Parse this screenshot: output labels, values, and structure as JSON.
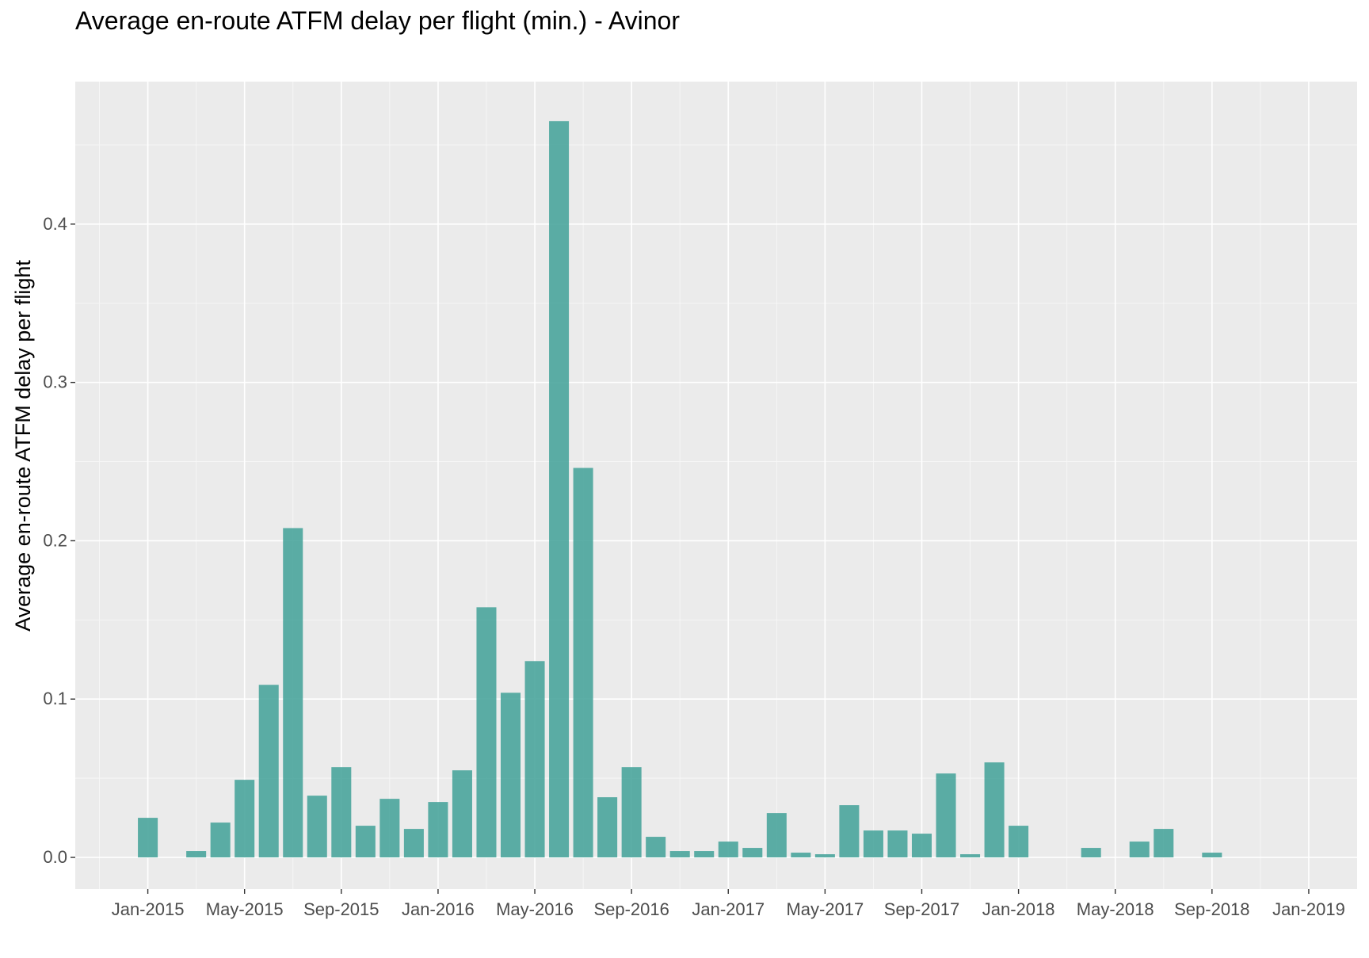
{
  "chart_data": {
    "type": "bar",
    "title": "Average en-route ATFM delay per flight (min.) - Avinor",
    "xlabel": "",
    "ylabel": "Average en-route ATFM delay per flight",
    "x_ticks": [
      "Jan-2015",
      "May-2015",
      "Sep-2015",
      "Jan-2016",
      "May-2016",
      "Sep-2016",
      "Jan-2017",
      "May-2017",
      "Sep-2017",
      "Jan-2018",
      "May-2018",
      "Sep-2018",
      "Jan-2019"
    ],
    "y_ticks": [
      "0.0",
      "0.1",
      "0.2",
      "0.3",
      "0.4"
    ],
    "ylim": [
      -0.02,
      0.49
    ],
    "xlim": [
      "2014-10",
      "2019-03"
    ],
    "grid": true,
    "bar_color": "#4aa59c",
    "panel_color": "#ebebeb",
    "categories": [
      "2015-01",
      "2015-02",
      "2015-03",
      "2015-04",
      "2015-05",
      "2015-06",
      "2015-07",
      "2015-08",
      "2015-09",
      "2015-10",
      "2015-11",
      "2015-12",
      "2016-01",
      "2016-02",
      "2016-03",
      "2016-04",
      "2016-05",
      "2016-06",
      "2016-07",
      "2016-08",
      "2016-09",
      "2016-10",
      "2016-11",
      "2016-12",
      "2017-01",
      "2017-02",
      "2017-03",
      "2017-04",
      "2017-05",
      "2017-06",
      "2017-07",
      "2017-08",
      "2017-09",
      "2017-10",
      "2017-11",
      "2017-12",
      "2018-01",
      "2018-02",
      "2018-03",
      "2018-04",
      "2018-05",
      "2018-06",
      "2018-07",
      "2018-08",
      "2018-09",
      "2018-10",
      "2018-11",
      "2018-12"
    ],
    "values": [
      0.025,
      0,
      0.004,
      0.022,
      0.049,
      0.109,
      0.208,
      0.039,
      0.057,
      0.02,
      0.037,
      0.018,
      0.035,
      0.055,
      0.158,
      0.104,
      0.124,
      0.465,
      0.246,
      0.038,
      0.057,
      0.013,
      0.004,
      0.004,
      0.01,
      0.006,
      0.028,
      0.003,
      0.002,
      0.033,
      0.017,
      0.017,
      0.015,
      0.053,
      0.002,
      0.06,
      0.02,
      0,
      0,
      0.006,
      0,
      0.01,
      0.018,
      0,
      0.003,
      0,
      0,
      0
    ]
  }
}
